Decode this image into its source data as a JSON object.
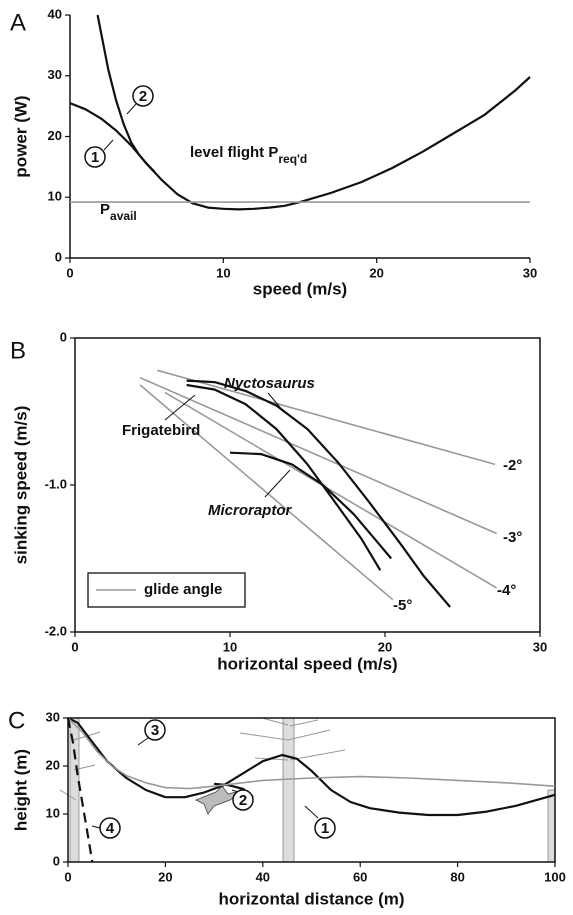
{
  "chart_data": [
    {
      "type": "line",
      "panel": "A",
      "xlabel": "speed (m/s)",
      "ylabel": "power (W)",
      "xlim": [
        0,
        30
      ],
      "ylim": [
        0,
        40
      ],
      "xticks": [
        0,
        10,
        20,
        30
      ],
      "yticks": [
        0,
        10,
        20,
        30,
        40
      ],
      "series": [
        {
          "name": "1",
          "color": "#111111",
          "x": [
            0,
            1,
            2,
            3,
            4,
            5,
            6,
            7,
            8,
            9,
            10,
            11,
            12,
            13,
            14,
            15,
            17,
            19,
            21,
            23,
            25,
            27,
            29,
            30
          ],
          "values": [
            25.5,
            24.5,
            23,
            21,
            18.5,
            15.5,
            12.8,
            10.5,
            9,
            8.3,
            8.1,
            8,
            8.1,
            8.3,
            8.6,
            9.2,
            10.7,
            12.5,
            14.8,
            17.5,
            20.5,
            23.5,
            27.5,
            29.8
          ]
        },
        {
          "name": "2",
          "color": "#111111",
          "x": [
            1.8,
            2.5,
            3,
            3.5,
            4,
            4.5,
            5,
            5.5
          ],
          "values": [
            40,
            31,
            26,
            22,
            19,
            17,
            15.5,
            14.2
          ]
        },
        {
          "color": "#999999",
          "x": [
            0,
            30
          ],
          "values": [
            9.2,
            9.2
          ]
        }
      ],
      "annotations": [
        {
          "text": "level flight P",
          "sub": "req'd"
        },
        {
          "text": "P",
          "sub": "avail"
        }
      ]
    },
    {
      "type": "line",
      "panel": "B",
      "xlabel": "horizontal speed (m/s)",
      "ylabel": "sinking speed (m/s)",
      "xlim": [
        0,
        30
      ],
      "ylim": [
        -2,
        0
      ],
      "xticks": [
        0,
        10,
        20,
        30
      ],
      "yticks": [
        {
          "value": -2,
          "label": "-2.0"
        },
        {
          "value": -1,
          "label": "-1.0"
        },
        0
      ],
      "legend_label": "glide angle",
      "legend_position": "lower left",
      "series": [
        {
          "name": "-2°",
          "color": "#999999",
          "x": [
            5.3,
            27.1
          ],
          "values": [
            -0.22,
            -0.86
          ]
        },
        {
          "name": "-3°",
          "color": "#999999",
          "x": [
            4.2,
            27.2
          ],
          "values": [
            -0.27,
            -1.33
          ]
        },
        {
          "name": "-4°",
          "color": "#999999",
          "x": [
            5.8,
            27.2
          ],
          "values": [
            -0.37,
            -1.7
          ]
        },
        {
          "name": "-5°",
          "color": "#999999",
          "x": [
            4.2,
            20.5
          ],
          "values": [
            -0.32,
            -1.78
          ]
        },
        {
          "name": "Nyctosaurus",
          "color": "#111111",
          "italic": true,
          "x": [
            7.2,
            9,
            11,
            13,
            15,
            17,
            19,
            21,
            22.5,
            24.2
          ],
          "values": [
            -0.29,
            -0.3,
            -0.36,
            -0.46,
            -0.62,
            -0.85,
            -1.12,
            -1.4,
            -1.62,
            -1.83
          ]
        },
        {
          "name": "Frigatebird",
          "color": "#111111",
          "x": [
            7.2,
            9,
            11,
            13,
            15,
            17,
            18.5,
            19.7
          ],
          "values": [
            -0.32,
            -0.35,
            -0.45,
            -0.62,
            -0.86,
            -1.15,
            -1.37,
            -1.58
          ]
        },
        {
          "name": "Microraptor",
          "color": "#111111",
          "italic": true,
          "x": [
            10,
            12,
            14,
            16,
            18,
            20.4
          ],
          "values": [
            -0.78,
            -0.79,
            -0.86,
            -1.0,
            -1.2,
            -1.5
          ]
        }
      ]
    },
    {
      "type": "line",
      "panel": "C",
      "xlabel": "horizontal distance (m)",
      "ylabel": "height (m)",
      "xlim": [
        0,
        100
      ],
      "ylim": [
        0,
        30
      ],
      "xticks": [
        0,
        20,
        40,
        60,
        80,
        100
      ],
      "yticks": [
        0,
        10,
        20,
        30
      ],
      "series": [
        {
          "name": "1",
          "color": "#111111",
          "x": [
            0,
            2,
            5,
            8,
            12,
            16,
            20,
            24,
            28,
            32,
            36,
            40,
            44,
            47,
            50,
            54,
            58,
            62,
            68,
            74,
            80,
            86,
            92,
            100
          ],
          "values": [
            30,
            29,
            25,
            21,
            17.5,
            15,
            13.5,
            13.5,
            14.5,
            16,
            18.5,
            21,
            22.3,
            21.5,
            19,
            15,
            12.5,
            11.2,
            10.3,
            9.8,
            9.8,
            10.5,
            11.7,
            14
          ]
        },
        {
          "name": "2",
          "color": "#111111",
          "x": [
            30,
            33,
            36,
            38
          ],
          "values": [
            16.3,
            16,
            15.2,
            13.5
          ]
        },
        {
          "name": "3",
          "color": "#999999",
          "x": [
            0,
            3,
            6,
            9,
            12,
            16,
            20,
            25,
            30,
            40,
            50,
            60,
            70,
            80,
            90,
            100
          ],
          "values": [
            30,
            27,
            23,
            20,
            18,
            16.5,
            15.5,
            15.3,
            15.8,
            17,
            17.5,
            17.8,
            17.5,
            17,
            16.5,
            15.8
          ]
        },
        {
          "name": "4",
          "color": "#111111",
          "dashed": true,
          "x": [
            0,
            1,
            2,
            3,
            4,
            5
          ],
          "values": [
            30,
            25,
            18,
            12,
            6,
            0
          ]
        }
      ]
    }
  ]
}
